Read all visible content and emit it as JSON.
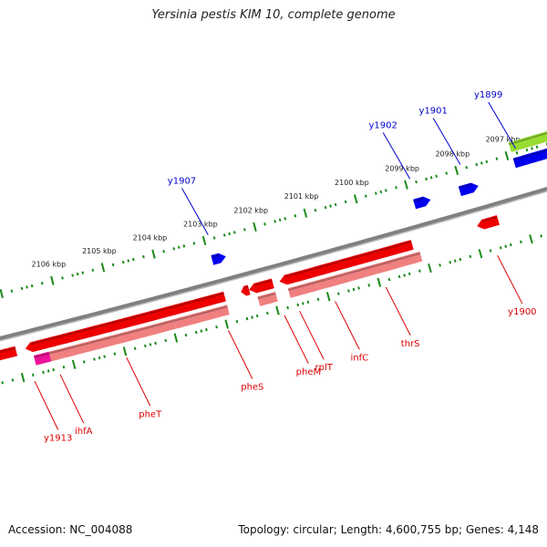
{
  "title": "Yersinia pestis KIM 10, complete genome",
  "footer": {
    "accession": "Accession: NC_004088",
    "summary": "Topology: circular; Length: 4,600,755 bp; Genes: 4,148"
  },
  "colors": {
    "backbone": "#808080",
    "tick": "#1a8a1a",
    "forward_gene": "#0000ee",
    "reverse_gene": "#ee0000",
    "reverse_cds": "#f08080",
    "rna_feature": "#99dd33",
    "misc_feature": "#ee1199",
    "forward_label": "#0000cc",
    "reverse_label": "#dd0000"
  },
  "scale": {
    "unit": "kbp",
    "ticks": [
      {
        "label": "2097 kbp",
        "kbp": 2097
      },
      {
        "label": "2098 kbp",
        "kbp": 2098
      },
      {
        "label": "2099 kbp",
        "kbp": 2099
      },
      {
        "label": "2100 kbp",
        "kbp": 2100
      },
      {
        "label": "2101 kbp",
        "kbp": 2101
      },
      {
        "label": "2102 kbp",
        "kbp": 2102
      },
      {
        "label": "2103 kbp",
        "kbp": 2103
      },
      {
        "label": "2104 kbp",
        "kbp": 2104
      },
      {
        "label": "2105 kbp",
        "kbp": 2105
      },
      {
        "label": "2106 kbp",
        "kbp": 2106
      }
    ]
  },
  "forward_labels": [
    {
      "name": "y1899",
      "kbp": 2096.8
    },
    {
      "name": "y1901",
      "kbp": 2097.9
    },
    {
      "name": "y1902",
      "kbp": 2098.9
    },
    {
      "name": "y1907",
      "kbp": 2102.9
    }
  ],
  "reverse_labels": [
    {
      "name": "y1900",
      "kbp": 2097.7
    },
    {
      "name": "thrS",
      "kbp": 2099.9
    },
    {
      "name": "infC",
      "kbp": 2100.9
    },
    {
      "name": "rplT",
      "kbp": 2101.6
    },
    {
      "name": "pheM",
      "kbp": 2101.9
    },
    {
      "name": "pheS",
      "kbp": 2103.0
    },
    {
      "name": "pheT",
      "kbp": 2105.0
    },
    {
      "name": "ihfA",
      "kbp": 2106.3
    },
    {
      "name": "y1913",
      "kbp": 2106.8
    }
  ],
  "features": [
    {
      "name": "y1899",
      "strand": "+",
      "track": "rna",
      "start": 2096.0,
      "end": 2096.9
    },
    {
      "name": "y1899",
      "strand": "+",
      "track": "gene2",
      "start": 2096.0,
      "end": 2096.9
    },
    {
      "name": "y1901",
      "strand": "+",
      "track": "gene",
      "start": 2097.8,
      "end": 2098.05
    },
    {
      "name": "y1902",
      "strand": "+",
      "track": "gene",
      "start": 2098.75,
      "end": 2098.95
    },
    {
      "name": "y1907",
      "strand": "+",
      "track": "gene",
      "start": 2102.8,
      "end": 2102.95
    },
    {
      "name": "y1900",
      "strand": "-",
      "track": "gene",
      "start": 2097.5,
      "end": 2097.8
    },
    {
      "name": "thrS",
      "strand": "-",
      "track": "gene",
      "start": 2099.2,
      "end": 2101.15
    },
    {
      "name": "thrS",
      "strand": "-",
      "track": "cds",
      "start": 2099.1,
      "end": 2101.15
    },
    {
      "name": "infC",
      "strand": "-",
      "track": "gene",
      "start": 2101.15,
      "end": 2101.7
    },
    {
      "name": "infC",
      "strand": "-",
      "track": "cds",
      "start": 2101.15,
      "end": 2101.7
    },
    {
      "name": "rplT",
      "strand": "-",
      "track": "gene",
      "start": 2101.95,
      "end": 2102.3
    },
    {
      "name": "rplT",
      "strand": "-",
      "track": "cds",
      "start": 2101.95,
      "end": 2102.3
    },
    {
      "name": "pheM",
      "strand": "-",
      "track": "gene",
      "start": 2102.42,
      "end": 2102.5
    },
    {
      "name": "pheS",
      "strand": "-",
      "track": "gene",
      "start": 2102.9,
      "end": 2103.95
    },
    {
      "name": "pheS",
      "strand": "-",
      "track": "cds",
      "start": 2102.9,
      "end": 2103.95
    },
    {
      "name": "pheT",
      "strand": "-",
      "track": "gene",
      "start": 2103.95,
      "end": 2106.4
    },
    {
      "name": "pheT",
      "strand": "-",
      "track": "cds",
      "start": 2103.95,
      "end": 2106.4
    },
    {
      "name": "ihfA",
      "strand": "-",
      "track": "gene",
      "start": 2106.4,
      "end": 2106.7
    },
    {
      "name": "ihfA",
      "strand": "-",
      "track": "misc",
      "start": 2106.4,
      "end": 2106.7
    },
    {
      "name": "y1913",
      "strand": "-",
      "track": "gene",
      "start": 2107.0,
      "end": 2107.45
    }
  ]
}
